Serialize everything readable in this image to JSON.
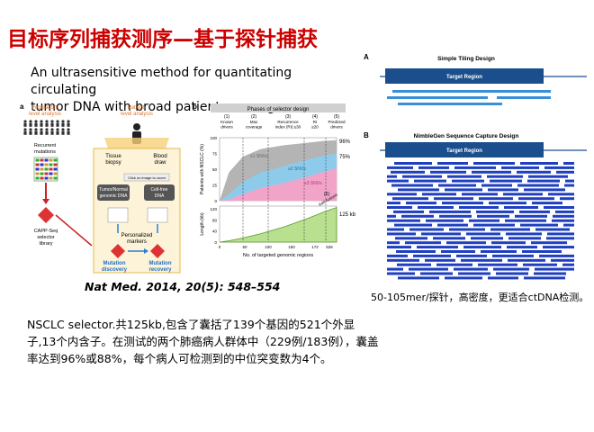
{
  "slide": {
    "title": "目标序列捕获测序—基于探针捕获",
    "subtitle_lines": [
      "An ultrasensitive method for quantitating circulating",
      "tumor DNA with broad patient coverage"
    ],
    "citation": "Nat Med. 2014, 20(5): 548–554",
    "body_text": "NSCLC selector.共125kb,包含了囊括了139个基因的521个外显子,13个内含子。在测试的两个肺癌病人群体中（229例/183例），囊盖率达到96%或88%，每个病人可检测到的中位突变数为4个。",
    "note_text": "50-105mer/探针，高密度，更适合ctDNA检测。"
  },
  "figure_left": {
    "panel_a": {
      "label": "a",
      "pop_title_lines": [
        "Population-",
        "level analysis"
      ],
      "pat_title_lines": [
        "Patient-",
        "level analysis"
      ],
      "recurrent_lines": [
        "Recurrent",
        "mutations"
      ],
      "capp_lines": [
        "CAPP-Seq",
        "selector",
        "library"
      ],
      "tissue_lines": [
        "Tissue",
        "biopsy"
      ],
      "blood_lines": [
        "Blood",
        "draw"
      ],
      "click_zoom": "Click on image to zoom",
      "tumor_lines": [
        "Tumor/Normal",
        "genomic DNA"
      ],
      "cellfree_lines": [
        "Cell-free",
        "DNA"
      ],
      "personal_lines": [
        "Personalized",
        "markers"
      ],
      "mut_disc_lines": [
        "Mutation",
        "discovery"
      ],
      "mut_rec_lines": [
        "Mutation",
        "recovery"
      ]
    },
    "panel_b": {
      "label": "b",
      "header": "Phases of selector design",
      "phases": [
        {
          "num": "(1)",
          "lines": [
            "Known",
            "drivers"
          ]
        },
        {
          "num": "(2)",
          "lines": [
            "Max",
            "coverage"
          ]
        },
        {
          "num": "(3)",
          "lines": [
            "Recurrence",
            "index (RI) ≥30"
          ]
        },
        {
          "num": "(4)",
          "lines": [
            "RI",
            "≥20"
          ]
        },
        {
          "num": "(5)",
          "lines": [
            "Predicted",
            "drivers"
          ]
        }
      ],
      "ylabel_top": "Patients with NSCLC (%)",
      "ylabel_bottom": "Length (kb)",
      "xlabel": "No. of targeted genomic regions",
      "yticks_top": [
        "0",
        "25",
        "50",
        "75",
        "100"
      ],
      "yticks_bottom": [
        "0",
        "40",
        "80",
        "120"
      ],
      "xticks": [
        "0",
        "50",
        "100",
        "150",
        "172",
        "526"
      ],
      "area_labels": [
        "≥1 SNVs",
        "≥2 SNVs",
        "≥3 SNVs"
      ],
      "pct_labels": [
        "96%",
        "75%"
      ],
      "kb_label": "125 kb",
      "fusion_num": "(6)",
      "fusion_label": "Add fusions",
      "colors": {
        "grey": "#b4b4b4",
        "blue": "#8ecbea",
        "pink": "#f2a4c8",
        "green": "#b8e08e"
      }
    }
  },
  "figure_right": {
    "panel_a_label": "A",
    "panel_a_title": "Simple Tiling Design",
    "panel_b_label": "B",
    "panel_b_title": "NimbleGen Sequence Capture Design",
    "target_label": "Target Region",
    "colors": {
      "target": "#1a4e8c",
      "tile": "#3b8fd9",
      "probe": "#1f3fbf"
    }
  }
}
